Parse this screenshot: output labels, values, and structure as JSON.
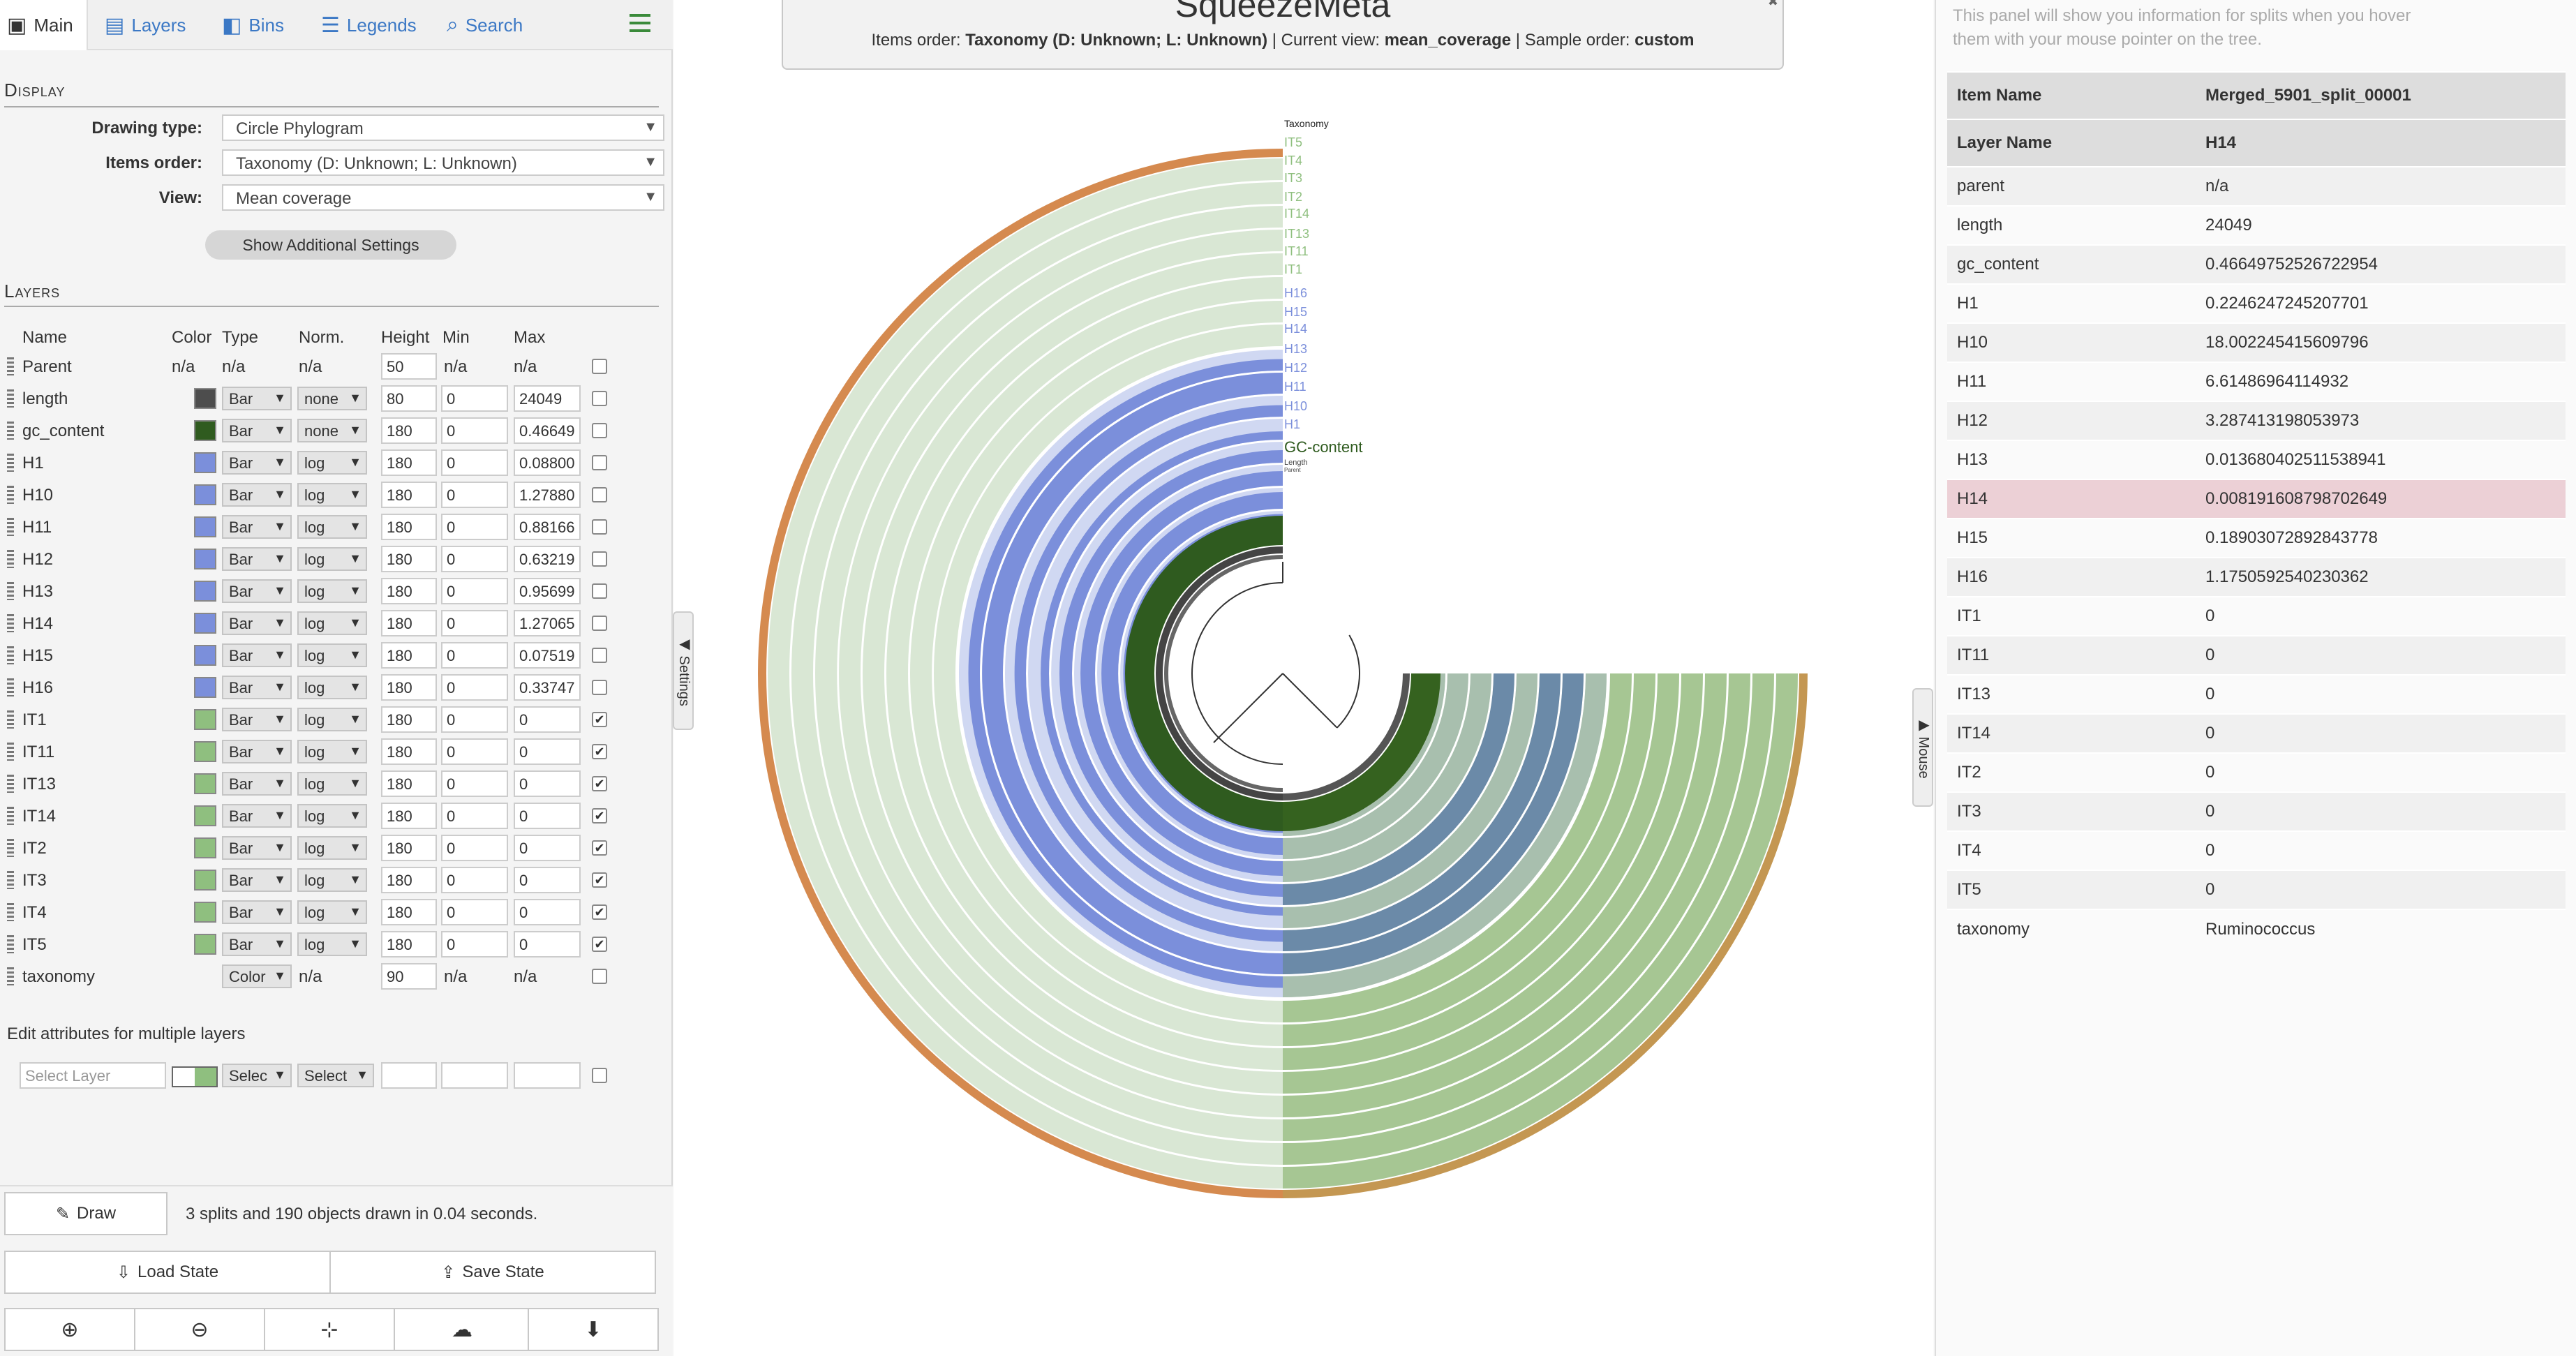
{
  "tabs": [
    {
      "label": "Main",
      "icon": "image-icon"
    },
    {
      "label": "Layers",
      "icon": "layers-icon"
    },
    {
      "label": "Bins",
      "icon": "bins-icon"
    },
    {
      "label": "Legends",
      "icon": "list-icon"
    },
    {
      "label": "Search",
      "icon": "search-icon"
    }
  ],
  "display": {
    "heading": "Display",
    "drawing_type_label": "Drawing type:",
    "drawing_type_value": "Circle Phylogram",
    "items_order_label": "Items order:",
    "items_order_value": "Taxonomy (D: Unknown; L: Unknown)",
    "view_label": "View:",
    "view_value": "Mean coverage",
    "additional_button": "Show Additional Settings"
  },
  "layers": {
    "heading": "Layers",
    "columns": [
      "Name",
      "Color",
      "Type",
      "Norm.",
      "Height",
      "Min",
      "Max"
    ],
    "rows": [
      {
        "name": "Parent",
        "color": null,
        "color_text": "n/a",
        "type": "n/a",
        "norm": "n/a",
        "height": "50",
        "min": "n/a",
        "max": "n/a",
        "checked": false
      },
      {
        "name": "length",
        "color": "#4d4d4d",
        "type": "Bar",
        "norm": "none",
        "height": "80",
        "min": "0",
        "max": "24049",
        "checked": false
      },
      {
        "name": "gc_content",
        "color": "#2f5b1f",
        "type": "Bar",
        "norm": "none",
        "height": "180",
        "min": "0",
        "max": "0.46649",
        "checked": false
      },
      {
        "name": "H1",
        "color": "#7b8fdb",
        "type": "Bar",
        "norm": "log",
        "height": "180",
        "min": "0",
        "max": "0.08800",
        "checked": false
      },
      {
        "name": "H10",
        "color": "#7b8fdb",
        "type": "Bar",
        "norm": "log",
        "height": "180",
        "min": "0",
        "max": "1.27880",
        "checked": false
      },
      {
        "name": "H11",
        "color": "#7b8fdb",
        "type": "Bar",
        "norm": "log",
        "height": "180",
        "min": "0",
        "max": "0.88166",
        "checked": false
      },
      {
        "name": "H12",
        "color": "#7b8fdb",
        "type": "Bar",
        "norm": "log",
        "height": "180",
        "min": "0",
        "max": "0.63219",
        "checked": false
      },
      {
        "name": "H13",
        "color": "#7b8fdb",
        "type": "Bar",
        "norm": "log",
        "height": "180",
        "min": "0",
        "max": "0.95699",
        "checked": false
      },
      {
        "name": "H14",
        "color": "#7b8fdb",
        "type": "Bar",
        "norm": "log",
        "height": "180",
        "min": "0",
        "max": "1.27065",
        "checked": false
      },
      {
        "name": "H15",
        "color": "#7b8fdb",
        "type": "Bar",
        "norm": "log",
        "height": "180",
        "min": "0",
        "max": "0.07519",
        "checked": false
      },
      {
        "name": "H16",
        "color": "#7b8fdb",
        "type": "Bar",
        "norm": "log",
        "height": "180",
        "min": "0",
        "max": "0.33747",
        "checked": false
      },
      {
        "name": "IT1",
        "color": "#8fbf7f",
        "type": "Bar",
        "norm": "log",
        "height": "180",
        "min": "0",
        "max": "0",
        "checked": true
      },
      {
        "name": "IT11",
        "color": "#8fbf7f",
        "type": "Bar",
        "norm": "log",
        "height": "180",
        "min": "0",
        "max": "0",
        "checked": true
      },
      {
        "name": "IT13",
        "color": "#8fbf7f",
        "type": "Bar",
        "norm": "log",
        "height": "180",
        "min": "0",
        "max": "0",
        "checked": true
      },
      {
        "name": "IT14",
        "color": "#8fbf7f",
        "type": "Bar",
        "norm": "log",
        "height": "180",
        "min": "0",
        "max": "0",
        "checked": true
      },
      {
        "name": "IT2",
        "color": "#8fbf7f",
        "type": "Bar",
        "norm": "log",
        "height": "180",
        "min": "0",
        "max": "0",
        "checked": true
      },
      {
        "name": "IT3",
        "color": "#8fbf7f",
        "type": "Bar",
        "norm": "log",
        "height": "180",
        "min": "0",
        "max": "0",
        "checked": true
      },
      {
        "name": "IT4",
        "color": "#8fbf7f",
        "type": "Bar",
        "norm": "log",
        "height": "180",
        "min": "0",
        "max": "0",
        "checked": true
      },
      {
        "name": "IT5",
        "color": "#8fbf7f",
        "type": "Bar",
        "norm": "log",
        "height": "180",
        "min": "0",
        "max": "0",
        "checked": true
      },
      {
        "name": "taxonomy",
        "color": null,
        "color_text": "",
        "type": "Color",
        "norm": "n/a",
        "height": "90",
        "min": "n/a",
        "max": "n/a",
        "checked": false
      }
    ]
  },
  "edit_multiple": {
    "label": "Edit attributes for multiple layers",
    "select_layer_placeholder": "Select Layer",
    "type_select": "Selec",
    "norm_select": "Select"
  },
  "actions": {
    "draw": "Draw",
    "status": "3 splits and 190 objects drawn in 0.04 seconds.",
    "load_state": "Load State",
    "save_state": "Save State"
  },
  "header": {
    "title": "SqueezeMeta",
    "items_order_prefix": "Items order: ",
    "items_order": "Taxonomy (D: Unknown; L: Unknown)",
    "view_prefix": " | Current view: ",
    "view": "mean_coverage",
    "sample_prefix": " | Sample order: ",
    "sample_order": "custom"
  },
  "side_tabs": {
    "settings": "◀ Settings",
    "mouse": "▶ Mouse"
  },
  "ring_labels": [
    {
      "text": "Taxonomy",
      "color": "#222222"
    },
    {
      "text": "IT5",
      "color": "#8fbf7f"
    },
    {
      "text": "IT4",
      "color": "#8fbf7f"
    },
    {
      "text": "IT3",
      "color": "#8fbf7f"
    },
    {
      "text": "IT2",
      "color": "#8fbf7f"
    },
    {
      "text": "IT14",
      "color": "#8fbf7f"
    },
    {
      "text": "IT13",
      "color": "#8fbf7f"
    },
    {
      "text": "IT11",
      "color": "#8fbf7f"
    },
    {
      "text": "IT1",
      "color": "#8fbf7f"
    },
    {
      "text": "H16",
      "color": "#7b8fdb"
    },
    {
      "text": "H15",
      "color": "#7b8fdb"
    },
    {
      "text": "H14",
      "color": "#7b8fdb"
    },
    {
      "text": "H13",
      "color": "#7b8fdb"
    },
    {
      "text": "H12",
      "color": "#7b8fdb"
    },
    {
      "text": "H11",
      "color": "#7b8fdb"
    },
    {
      "text": "H10",
      "color": "#7b8fdb"
    },
    {
      "text": "H1",
      "color": "#7b8fdb"
    },
    {
      "text": "GC-content",
      "color": "#2f5b1f"
    },
    {
      "text": "Length",
      "color": "#444444"
    },
    {
      "text": "Parent",
      "color": "#444444"
    }
  ],
  "mouse_panel": {
    "hint": "This panel will show you information for splits when you hover them with your mouse pointer on the tree.",
    "item_name_label": "Item Name",
    "item_name": "Merged_5901_split_00001",
    "layer_name_label": "Layer Name",
    "layer_name": "H14",
    "rows": [
      {
        "k": "parent",
        "v": "n/a"
      },
      {
        "k": "length",
        "v": "24049"
      },
      {
        "k": "gc_content",
        "v": "0.46649752526722954"
      },
      {
        "k": "H1",
        "v": "0.2246247245207701"
      },
      {
        "k": "H10",
        "v": "18.002245415609796"
      },
      {
        "k": "H11",
        "v": "6.61486964114932"
      },
      {
        "k": "H12",
        "v": "3.287413198053973"
      },
      {
        "k": "H13",
        "v": "0.013680402511538941"
      },
      {
        "k": "H14",
        "v": "0.008191608798702649",
        "highlight": true
      },
      {
        "k": "H15",
        "v": "0.18903072892843778"
      },
      {
        "k": "H16",
        "v": "1.1750592540230362"
      },
      {
        "k": "IT1",
        "v": "0"
      },
      {
        "k": "IT11",
        "v": "0"
      },
      {
        "k": "IT13",
        "v": "0"
      },
      {
        "k": "IT14",
        "v": "0"
      },
      {
        "k": "IT2",
        "v": "0"
      },
      {
        "k": "IT3",
        "v": "0"
      },
      {
        "k": "IT4",
        "v": "0"
      },
      {
        "k": "IT5",
        "v": "0"
      },
      {
        "k": "taxonomy",
        "v": "Ruminococcus"
      }
    ]
  }
}
